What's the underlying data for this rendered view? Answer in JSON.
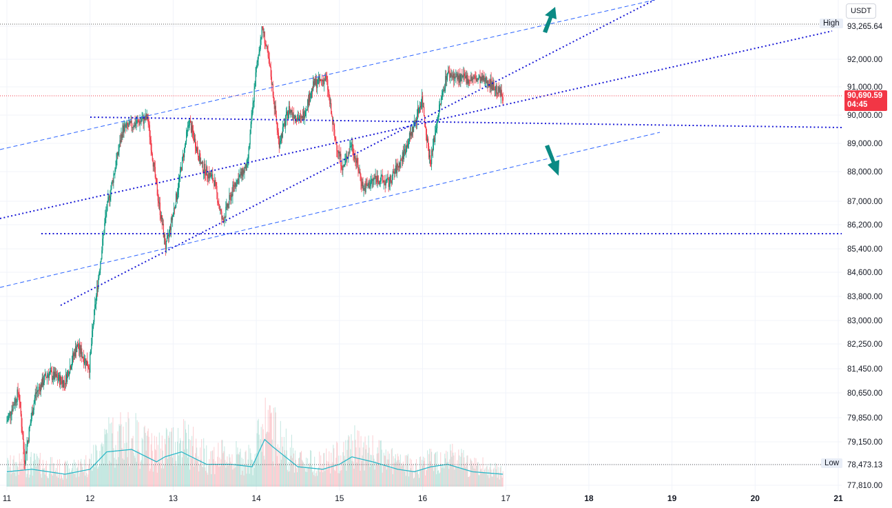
{
  "currency_button": "USDT",
  "high_low": {
    "high_label": "High",
    "high_value": "93,265.64",
    "low_label": "Low",
    "low_value": "78,473.13"
  },
  "last_price": {
    "value": "90,690.59",
    "countdown": "04:45"
  },
  "colors": {
    "up": "#089981",
    "down": "#f23645",
    "trendline": "#2962ff",
    "levels": "#1717d6",
    "volume_ma": "#2cb8c8",
    "arrows": "#0b8a84"
  },
  "chart_data": {
    "type": "candlestick",
    "y_axis_ticks": [
      "93,265.64",
      "92,000.00",
      "91,000.00",
      "90,000.00",
      "89,000.00",
      "88,000.00",
      "87,000.00",
      "86,200.00",
      "85,400.00",
      "84,600.00",
      "83,800.00",
      "83,000.00",
      "82,250.00",
      "81,450.00",
      "80,650.00",
      "79,850.00",
      "79,150.00",
      "78,473.13",
      "77,810.00"
    ],
    "x_axis_ticks": [
      "11",
      "12",
      "13",
      "14",
      "15",
      "16",
      "17",
      "18",
      "19",
      "20",
      "21"
    ],
    "x_range": [
      11,
      21
    ],
    "price_range_approx": [
      77810,
      93265.64
    ],
    "price_path_keypoints": [
      [
        11.0,
        79700
      ],
      [
        11.15,
        80700
      ],
      [
        11.22,
        78600
      ],
      [
        11.35,
        80600
      ],
      [
        11.5,
        81300
      ],
      [
        11.7,
        81000
      ],
      [
        11.85,
        82200
      ],
      [
        12.0,
        81500
      ],
      [
        12.05,
        83000
      ],
      [
        12.12,
        84700
      ],
      [
        12.2,
        86600
      ],
      [
        12.3,
        88000
      ],
      [
        12.4,
        89500
      ],
      [
        12.55,
        89700
      ],
      [
        12.7,
        89900
      ],
      [
        12.8,
        87600
      ],
      [
        12.92,
        85400
      ],
      [
        13.05,
        87200
      ],
      [
        13.2,
        89800
      ],
      [
        13.35,
        88200
      ],
      [
        13.5,
        87700
      ],
      [
        13.6,
        86300
      ],
      [
        13.75,
        87600
      ],
      [
        13.9,
        88200
      ],
      [
        14.0,
        91400
      ],
      [
        14.08,
        93265.64
      ],
      [
        14.18,
        91500
      ],
      [
        14.28,
        89000
      ],
      [
        14.4,
        90200
      ],
      [
        14.55,
        89800
      ],
      [
        14.7,
        91100
      ],
      [
        14.85,
        91300
      ],
      [
        14.95,
        89200
      ],
      [
        15.05,
        88100
      ],
      [
        15.15,
        89000
      ],
      [
        15.3,
        87400
      ],
      [
        15.45,
        87800
      ],
      [
        15.6,
        87600
      ],
      [
        15.75,
        88400
      ],
      [
        15.9,
        89600
      ],
      [
        16.0,
        90600
      ],
      [
        16.1,
        88300
      ],
      [
        16.2,
        90100
      ],
      [
        16.3,
        91500
      ],
      [
        16.45,
        91300
      ],
      [
        16.6,
        91300
      ],
      [
        16.8,
        91200
      ],
      [
        16.97,
        90690.59
      ]
    ],
    "volume_profile_keypoints": [
      [
        11.0,
        0.3
      ],
      [
        11.3,
        0.35
      ],
      [
        11.7,
        0.25
      ],
      [
        12.0,
        0.35
      ],
      [
        12.2,
        0.7
      ],
      [
        12.5,
        0.75
      ],
      [
        12.8,
        0.5
      ],
      [
        12.9,
        0.6
      ],
      [
        13.1,
        0.7
      ],
      [
        13.4,
        0.45
      ],
      [
        13.7,
        0.45
      ],
      [
        13.95,
        0.4
      ],
      [
        14.1,
        0.95
      ],
      [
        14.2,
        0.8
      ],
      [
        14.5,
        0.4
      ],
      [
        14.8,
        0.35
      ],
      [
        15.0,
        0.45
      ],
      [
        15.15,
        0.6
      ],
      [
        15.4,
        0.5
      ],
      [
        15.7,
        0.35
      ],
      [
        15.9,
        0.3
      ],
      [
        16.1,
        0.4
      ],
      [
        16.3,
        0.45
      ],
      [
        16.6,
        0.3
      ],
      [
        16.97,
        0.25
      ]
    ],
    "horizontal_levels": [
      93265.64,
      86200,
      78473.13
    ]
  }
}
